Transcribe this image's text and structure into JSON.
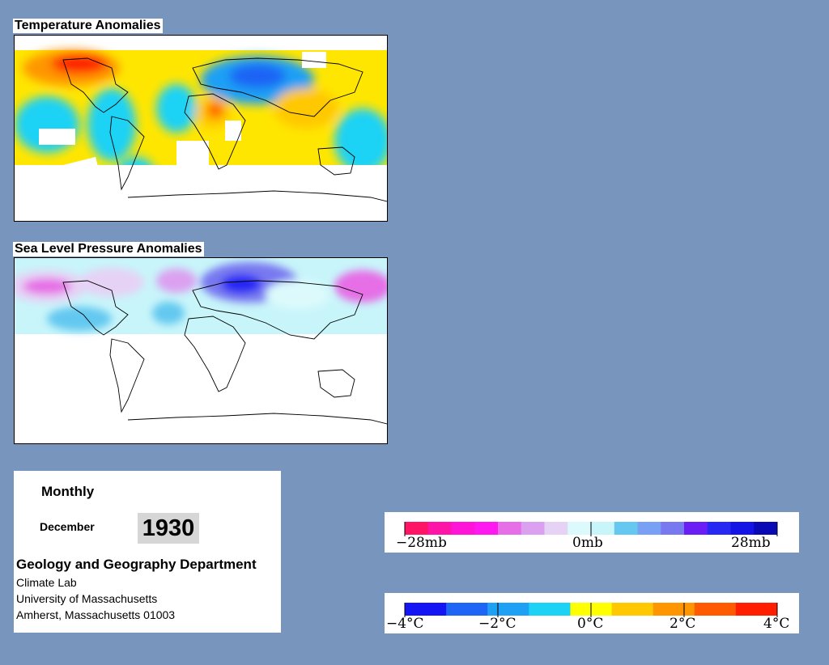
{
  "panels": {
    "temperature": {
      "title": "Temperature Anomalies"
    },
    "pressure": {
      "title": "Sea Level Pressure Anomalies"
    }
  },
  "info": {
    "frequency": "Monthly",
    "month": "December",
    "year": "1930",
    "department": "Geology and Geography Department",
    "lines": [
      "Climate Lab",
      "University of Massachusetts",
      "Amherst, Massachusetts 01003"
    ]
  },
  "pressure_legend": {
    "labels": [
      "−28mb",
      "0mb",
      "28mb"
    ],
    "colors": [
      "#ff1466",
      "#ff14a8",
      "#ff14d8",
      "#ff18f0",
      "#e66ee6",
      "#dca0f0",
      "#e6d2f5",
      "#dcfafc",
      "#c8f5fa",
      "#64c8f0",
      "#78a0f5",
      "#7878f0",
      "#6a1ef5",
      "#2828f5",
      "#1414e6",
      "#0a0ab4"
    ]
  },
  "temperature_legend": {
    "labels": [
      "−4°C",
      "−2°C",
      "0°C",
      "2°C",
      "4°C"
    ],
    "colors": [
      "#1414f5",
      "#1e64f5",
      "#1ea0f5",
      "#1ed2f5",
      "#ffff00",
      "#ffc800",
      "#ff9600",
      "#ff5a00",
      "#ff1e00"
    ]
  }
}
